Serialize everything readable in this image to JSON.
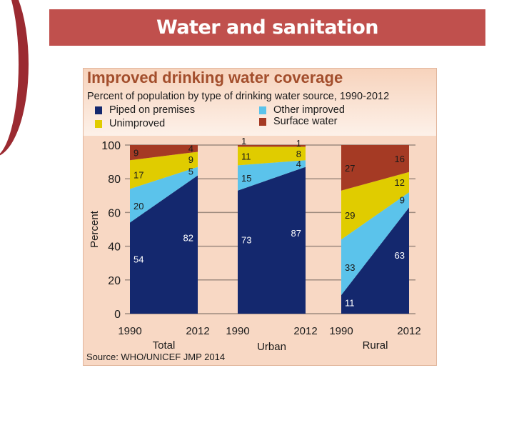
{
  "slide": {
    "title": "Water and sanitation"
  },
  "chart_data": {
    "type": "area",
    "title": "Improved drinking water coverage",
    "subtitle": "Percent of population by type of drinking water source, 1990-2012",
    "ylabel": "Percent",
    "ylim": [
      0,
      100
    ],
    "yticks": [
      0,
      20,
      40,
      60,
      80,
      100
    ],
    "grid": true,
    "legend": [
      {
        "name": "Piped on premises",
        "color": "#14286e"
      },
      {
        "name": "Other improved",
        "color": "#5bc3eb"
      },
      {
        "name": "Unimproved",
        "color": "#e0cc00"
      },
      {
        "name": "Surface water",
        "color": "#a53a24"
      }
    ],
    "stack_order": [
      "Piped on premises",
      "Other improved",
      "Unimproved",
      "Surface water"
    ],
    "panels": [
      {
        "name": "Total",
        "x": [
          "1990",
          "2012"
        ],
        "series": [
          {
            "name": "Piped on premises",
            "values": [
              54,
              82
            ]
          },
          {
            "name": "Other improved",
            "values": [
              20,
              5
            ]
          },
          {
            "name": "Unimproved",
            "values": [
              17,
              9
            ]
          },
          {
            "name": "Surface water",
            "values": [
              9,
              4
            ]
          }
        ]
      },
      {
        "name": "Urban",
        "x": [
          "1990",
          "2012"
        ],
        "series": [
          {
            "name": "Piped on premises",
            "values": [
              73,
              87
            ]
          },
          {
            "name": "Other improved",
            "values": [
              15,
              4
            ]
          },
          {
            "name": "Unimproved",
            "values": [
              11,
              8
            ]
          },
          {
            "name": "Surface water",
            "values": [
              1,
              1
            ]
          }
        ]
      },
      {
        "name": "Rural",
        "x": [
          "1990",
          "2012"
        ],
        "series": [
          {
            "name": "Piped on premises",
            "values": [
              11,
              63
            ]
          },
          {
            "name": "Other improved",
            "values": [
              33,
              9
            ]
          },
          {
            "name": "Unimproved",
            "values": [
              29,
              12
            ]
          },
          {
            "name": "Surface water",
            "values": [
              27,
              16
            ]
          }
        ]
      }
    ],
    "source": "Source:  WHO/UNICEF JMP 2014"
  }
}
